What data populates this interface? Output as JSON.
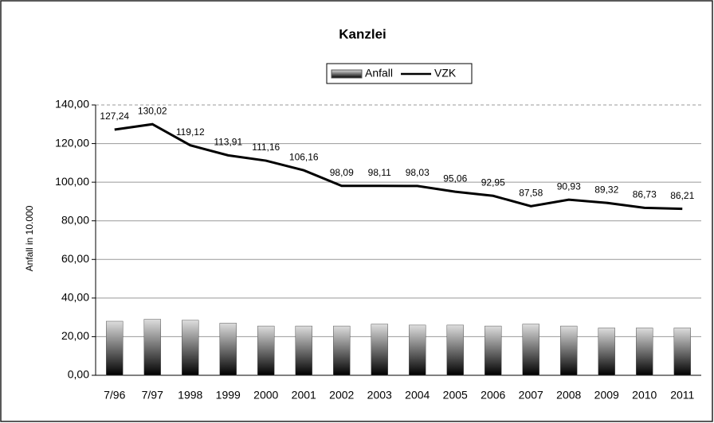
{
  "chart_data": {
    "type": "bar",
    "title": "Kanzlei",
    "y_label": "Anfall in 10.000",
    "categories": [
      "7/96",
      "7/97",
      "1998",
      "1999",
      "2000",
      "2001",
      "2002",
      "2003",
      "2004",
      "2005",
      "2006",
      "2007",
      "2008",
      "2009",
      "2010",
      "2011"
    ],
    "series": [
      {
        "name": "Anfall",
        "type": "bar",
        "color": "#555555",
        "values": [
          28,
          29,
          28.5,
          27,
          25.5,
          25.5,
          25.5,
          26.5,
          26,
          26,
          25.5,
          26.5,
          25.5,
          24.5,
          24.5,
          24.5
        ]
      },
      {
        "name": "VZK",
        "type": "line",
        "color": "#000000",
        "values": [
          127.24,
          130.02,
          119.12,
          113.91,
          111.16,
          106.16,
          98.09,
          98.11,
          98.03,
          95.06,
          92.95,
          87.58,
          90.93,
          89.32,
          86.73,
          86.21
        ],
        "value_labels": [
          "127,24",
          "130,02",
          "119,12",
          "113,91",
          "111,16",
          "106,16",
          "98,09",
          "98,11",
          "98,03",
          "95,06",
          "92,95",
          "87,58",
          "90,93",
          "89,32",
          "86,73",
          "86,21"
        ]
      }
    ],
    "ylim": [
      0,
      140
    ],
    "yticks": [
      {
        "value": 0,
        "label": "0,00"
      },
      {
        "value": 20,
        "label": "20,00"
      },
      {
        "value": 40,
        "label": "40,00"
      },
      {
        "value": 60,
        "label": "60,00"
      },
      {
        "value": 80,
        "label": "80,00"
      },
      {
        "value": 100,
        "label": "100,00"
      },
      {
        "value": 120,
        "label": "120,00"
      },
      {
        "value": 140,
        "label": "140,00"
      }
    ],
    "grid": true,
    "legend": "top"
  }
}
